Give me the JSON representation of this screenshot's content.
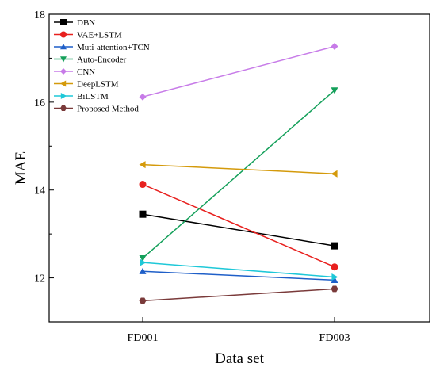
{
  "chart_data": {
    "type": "line",
    "title": "",
    "xlabel": "Data set",
    "ylabel": "MAE",
    "categories": [
      "FD001",
      "FD003"
    ],
    "ylim": [
      11,
      18
    ],
    "yticks": [
      12,
      14,
      16,
      18
    ],
    "grid": false,
    "legend_position": "top-left",
    "series": [
      {
        "name": "DBN",
        "values": [
          13.45,
          12.73
        ],
        "color": "#000000",
        "marker": "square"
      },
      {
        "name": "VAE+LSTM",
        "values": [
          14.13,
          12.25
        ],
        "color": "#e8201e",
        "marker": "circle"
      },
      {
        "name": "Muti-attention+TCN",
        "values": [
          12.15,
          11.95
        ],
        "color": "#1f5fc8",
        "marker": "triangle-up"
      },
      {
        "name": "Auto-Encoder",
        "values": [
          12.45,
          16.27
        ],
        "color": "#14a05a",
        "marker": "triangle-down"
      },
      {
        "name": "CNN",
        "values": [
          16.12,
          17.27
        ],
        "color": "#c77be8",
        "marker": "diamond"
      },
      {
        "name": "DeepLSTM",
        "values": [
          14.58,
          14.37
        ],
        "color": "#d49a0b",
        "marker": "triangle-left"
      },
      {
        "name": "BiLSTM",
        "values": [
          12.35,
          12.02
        ],
        "color": "#1ec8d8",
        "marker": "triangle-right"
      },
      {
        "name": "Proposed Method",
        "values": [
          11.48,
          11.75
        ],
        "color": "#7a3a3a",
        "marker": "hexagon"
      }
    ]
  }
}
